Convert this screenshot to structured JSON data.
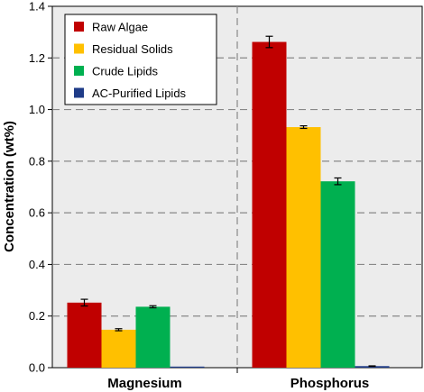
{
  "chart_data": {
    "type": "bar",
    "title": "",
    "xlabel": "",
    "ylabel": "Concentration (wt%)",
    "categories": [
      "Magnesium",
      "Phosphorus"
    ],
    "ylim": [
      0,
      1.4
    ],
    "yticks": [
      "0.0",
      "0.2",
      "0.4",
      "0.6",
      "0.8",
      "1.0",
      "1.2",
      "1.4"
    ],
    "grid": "dashed horizontal and vertical",
    "legend_position": "top-left",
    "series": [
      {
        "name": "Raw Algae",
        "color": "#c00000",
        "values": [
          0.252,
          1.262
        ],
        "errors": [
          0.013,
          0.022
        ]
      },
      {
        "name": "Residual Solids",
        "color": "#ffc000",
        "values": [
          0.147,
          0.932
        ],
        "errors": [
          0.004,
          0.005
        ]
      },
      {
        "name": "Crude Lipids",
        "color": "#00b050",
        "values": [
          0.236,
          0.722
        ],
        "errors": [
          0.004,
          0.013
        ]
      },
      {
        "name": "AC-Purified Lipids",
        "color": "#1f3c88",
        "values": [
          0.002,
          0.006
        ],
        "errors": [
          0.0,
          0.001
        ]
      }
    ]
  }
}
